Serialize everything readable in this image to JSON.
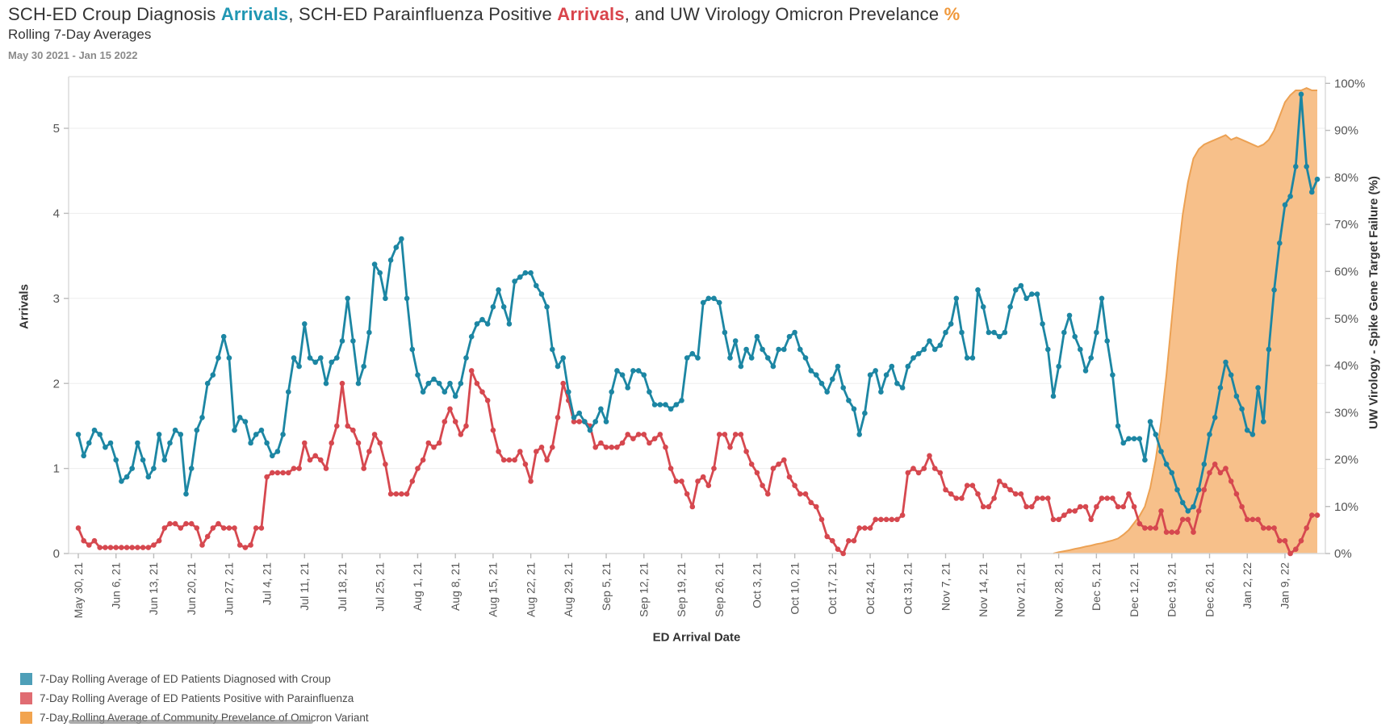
{
  "header": {
    "title_part1": "SCH-ED Croup Diagnosis ",
    "title_part2": "Arrivals",
    "title_part3": ", SCH-ED Parainfluenza Positive ",
    "title_part4": "Arrivals",
    "title_part5": ", and UW Virology Omicron Prevelance ",
    "title_part6": "%",
    "subtitle": "Rolling 7-Day Averages",
    "date_range": "May 30 2021 - Jan 15 2022"
  },
  "colors": {
    "croup_accent": "#2097B3",
    "para_accent": "#D9444B",
    "omicron_accent": "#F0993C",
    "croup_line": "#1C86A3",
    "para_line": "#D6484F",
    "omicron_stroke": "#ECA153",
    "omicron_fill": "#F7C08A",
    "gridline": "#EDEDED",
    "axis_line": "#D8D8D8",
    "tick_mark": "#BBBBBB",
    "tick_label": "#555555",
    "legend_croup": "#4E9FB8",
    "legend_para": "#E06C72",
    "legend_omicron": "#F2A44F"
  },
  "axes": {
    "left_title": "Arrivals",
    "left_ticks": [
      "0",
      "1",
      "2",
      "3",
      "4",
      "5"
    ],
    "right_title": "UW Virology - Spike Gene Target Failure (%)",
    "right_ticks": [
      "0%",
      "10%",
      "20%",
      "30%",
      "40%",
      "50%",
      "60%",
      "70%",
      "80%",
      "90%",
      "100%"
    ],
    "x_title": "ED Arrival Date",
    "x_tick_labels": [
      "May 30, 21",
      "Jun 6, 21",
      "Jun 13, 21",
      "Jun 20, 21",
      "Jun 27, 21",
      "Jul 4, 21",
      "Jul 11, 21",
      "Jul 18, 21",
      "Jul 25, 21",
      "Aug 1, 21",
      "Aug 8, 21",
      "Aug 15, 21",
      "Aug 22, 21",
      "Aug 29, 21",
      "Sep 5, 21",
      "Sep 12, 21",
      "Sep 19, 21",
      "Sep 26, 21",
      "Oct 3, 21",
      "Oct 10, 21",
      "Oct 17, 21",
      "Oct 24, 21",
      "Oct 31, 21",
      "Nov 7, 21",
      "Nov 14, 21",
      "Nov 21, 21",
      "Nov 28, 21",
      "Dec 5, 21",
      "Dec 12, 21",
      "Dec 19, 21",
      "Dec 26, 21",
      "Jan 2, 22",
      "Jan 9, 22"
    ]
  },
  "legend": {
    "items": [
      {
        "label": "7-Day Rolling Average of ED Patients Diagnosed with Croup",
        "color_key": "legend_croup"
      },
      {
        "label": "7-Day Rolling Average of ED Patients Positive with Parainfluenza",
        "color_key": "legend_para"
      },
      {
        "label": "7-Day Rolling Average of Community Prevelance of Omicron Variant",
        "color_key": "legend_omicron"
      }
    ]
  },
  "chart_data": {
    "type": "line",
    "title": "SCH-ED Croup Diagnosis Arrivals, SCH-ED Parainfluenza Positive Arrivals, and UW Virology Omicron Prevelance %",
    "subtitle": "Rolling 7-Day Averages",
    "x_start_date": "May 30 2021",
    "x_end_date": "Jan 15 2022",
    "frequency": "daily",
    "xlabel": "ED Arrival Date",
    "ylabel_left": "Arrivals",
    "ylabel_right": "UW Virology - Spike Gene Target Failure (%)",
    "ylim_left": [
      0,
      5.6
    ],
    "ylim_right": [
      0,
      101.5
    ],
    "grid": true,
    "legend_position": "bottom-left",
    "series": [
      {
        "name": "7-Day Rolling Average of ED Patients Diagnosed with Croup",
        "axis": "left",
        "style": "line-with-markers",
        "values": [
          1.4,
          1.15,
          1.3,
          1.45,
          1.4,
          1.25,
          1.3,
          1.1,
          0.85,
          0.9,
          1.0,
          1.3,
          1.1,
          0.9,
          1.0,
          1.4,
          1.1,
          1.3,
          1.45,
          1.4,
          0.7,
          1.0,
          1.45,
          1.6,
          2.0,
          2.1,
          2.3,
          2.55,
          2.3,
          1.45,
          1.6,
          1.55,
          1.3,
          1.4,
          1.45,
          1.3,
          1.15,
          1.2,
          1.4,
          1.9,
          2.3,
          2.2,
          2.7,
          2.3,
          2.25,
          2.3,
          2.0,
          2.25,
          2.3,
          2.5,
          3.0,
          2.5,
          2.0,
          2.2,
          2.6,
          3.4,
          3.3,
          3.0,
          3.45,
          3.6,
          3.7,
          3.0,
          2.4,
          2.1,
          1.9,
          2.0,
          2.05,
          2.0,
          1.9,
          2.0,
          1.85,
          2.0,
          2.3,
          2.55,
          2.7,
          2.75,
          2.7,
          2.9,
          3.1,
          2.9,
          2.7,
          3.2,
          3.25,
          3.3,
          3.3,
          3.15,
          3.05,
          2.9,
          2.4,
          2.2,
          2.3,
          1.9,
          1.6,
          1.65,
          1.55,
          1.45,
          1.55,
          1.7,
          1.55,
          1.9,
          2.15,
          2.1,
          1.95,
          2.15,
          2.15,
          2.1,
          1.9,
          1.75,
          1.75,
          1.75,
          1.7,
          1.75,
          1.8,
          2.3,
          2.35,
          2.3,
          2.95,
          3.0,
          3.0,
          2.95,
          2.6,
          2.3,
          2.5,
          2.2,
          2.4,
          2.3,
          2.55,
          2.4,
          2.3,
          2.2,
          2.4,
          2.4,
          2.55,
          2.6,
          2.4,
          2.3,
          2.15,
          2.1,
          2.0,
          1.9,
          2.05,
          2.2,
          1.95,
          1.8,
          1.7,
          1.4,
          1.65,
          2.1,
          2.15,
          1.9,
          2.1,
          2.2,
          2.0,
          1.95,
          2.2,
          2.3,
          2.35,
          2.4,
          2.5,
          2.4,
          2.45,
          2.6,
          2.7,
          3.0,
          2.6,
          2.3,
          2.3,
          3.1,
          2.9,
          2.6,
          2.6,
          2.55,
          2.6,
          2.9,
          3.1,
          3.15,
          3.0,
          3.05,
          3.05,
          2.7,
          2.4,
          1.85,
          2.2,
          2.6,
          2.8,
          2.55,
          2.4,
          2.15,
          2.3,
          2.6,
          3.0,
          2.5,
          2.1,
          1.5,
          1.3,
          1.35,
          1.35,
          1.35,
          1.1,
          1.55,
          1.4,
          1.2,
          1.05,
          0.95,
          0.75,
          0.6,
          0.5,
          0.55,
          0.75,
          1.05,
          1.4,
          1.6,
          1.95,
          2.25,
          2.1,
          1.85,
          1.7,
          1.45,
          1.4,
          1.95,
          1.55,
          2.4,
          3.1,
          3.65,
          4.1,
          4.2,
          4.55,
          5.4,
          4.55,
          4.25,
          4.4
        ]
      },
      {
        "name": "7-Day Rolling Average of ED Patients Positive with Parainfluenza",
        "axis": "left",
        "style": "line-with-markers",
        "values": [
          0.3,
          0.15,
          0.1,
          0.15,
          0.07,
          0.07,
          0.07,
          0.07,
          0.07,
          0.07,
          0.07,
          0.07,
          0.07,
          0.07,
          0.1,
          0.15,
          0.3,
          0.35,
          0.35,
          0.3,
          0.35,
          0.35,
          0.3,
          0.1,
          0.2,
          0.3,
          0.35,
          0.3,
          0.3,
          0.3,
          0.1,
          0.07,
          0.1,
          0.3,
          0.3,
          0.9,
          0.95,
          0.95,
          0.95,
          0.95,
          1.0,
          1.0,
          1.3,
          1.1,
          1.15,
          1.1,
          1.0,
          1.3,
          1.5,
          2.0,
          1.5,
          1.45,
          1.3,
          1.0,
          1.2,
          1.4,
          1.3,
          1.05,
          0.7,
          0.7,
          0.7,
          0.7,
          0.85,
          1.0,
          1.1,
          1.3,
          1.25,
          1.3,
          1.55,
          1.7,
          1.55,
          1.4,
          1.5,
          2.15,
          2.0,
          1.9,
          1.8,
          1.45,
          1.2,
          1.1,
          1.1,
          1.1,
          1.2,
          1.05,
          0.85,
          1.2,
          1.25,
          1.1,
          1.25,
          1.6,
          2.0,
          1.8,
          1.55,
          1.55,
          1.55,
          1.5,
          1.25,
          1.3,
          1.25,
          1.25,
          1.25,
          1.3,
          1.4,
          1.35,
          1.4,
          1.4,
          1.3,
          1.35,
          1.4,
          1.25,
          1.0,
          0.85,
          0.85,
          0.7,
          0.55,
          0.85,
          0.9,
          0.8,
          1.0,
          1.4,
          1.4,
          1.25,
          1.4,
          1.4,
          1.2,
          1.05,
          0.95,
          0.8,
          0.7,
          1.0,
          1.05,
          1.1,
          0.9,
          0.8,
          0.7,
          0.7,
          0.6,
          0.55,
          0.4,
          0.2,
          0.15,
          0.05,
          0.0,
          0.15,
          0.15,
          0.3,
          0.3,
          0.3,
          0.4,
          0.4,
          0.4,
          0.4,
          0.4,
          0.45,
          0.95,
          1.0,
          0.95,
          1.0,
          1.15,
          1.0,
          0.95,
          0.75,
          0.7,
          0.65,
          0.65,
          0.8,
          0.8,
          0.7,
          0.55,
          0.55,
          0.65,
          0.85,
          0.8,
          0.75,
          0.7,
          0.7,
          0.55,
          0.55,
          0.65,
          0.65,
          0.65,
          0.4,
          0.4,
          0.45,
          0.5,
          0.5,
          0.55,
          0.55,
          0.4,
          0.55,
          0.65,
          0.65,
          0.65,
          0.55,
          0.55,
          0.7,
          0.55,
          0.35,
          0.3,
          0.3,
          0.3,
          0.5,
          0.25,
          0.25,
          0.25,
          0.4,
          0.4,
          0.25,
          0.5,
          0.75,
          0.95,
          1.05,
          0.95,
          1.0,
          0.85,
          0.7,
          0.55,
          0.4,
          0.4,
          0.4,
          0.3,
          0.3,
          0.3,
          0.15,
          0.15,
          0.0,
          0.05,
          0.15,
          0.3,
          0.45,
          0.45
        ]
      },
      {
        "name": "7-Day Rolling Average of Community Prevelance of Omicron Variant",
        "axis": "right",
        "style": "area",
        "values": [
          0,
          0,
          0,
          0,
          0,
          0,
          0,
          0,
          0,
          0,
          0,
          0,
          0,
          0,
          0,
          0,
          0,
          0,
          0,
          0,
          0,
          0,
          0,
          0,
          0,
          0,
          0,
          0,
          0,
          0,
          0,
          0,
          0,
          0,
          0,
          0,
          0,
          0,
          0,
          0,
          0,
          0,
          0,
          0,
          0,
          0,
          0,
          0,
          0,
          0,
          0,
          0,
          0,
          0,
          0,
          0,
          0,
          0,
          0,
          0,
          0,
          0,
          0,
          0,
          0,
          0,
          0,
          0,
          0,
          0,
          0,
          0,
          0,
          0,
          0,
          0,
          0,
          0,
          0,
          0,
          0,
          0,
          0,
          0,
          0,
          0,
          0,
          0,
          0,
          0,
          0,
          0,
          0,
          0,
          0,
          0,
          0,
          0,
          0,
          0,
          0,
          0,
          0,
          0,
          0,
          0,
          0,
          0,
          0,
          0,
          0,
          0,
          0,
          0,
          0,
          0,
          0,
          0,
          0,
          0,
          0,
          0,
          0,
          0,
          0,
          0,
          0,
          0,
          0,
          0,
          0,
          0,
          0,
          0,
          0,
          0,
          0,
          0,
          0,
          0,
          0,
          0,
          0,
          0,
          0,
          0,
          0,
          0,
          0,
          0,
          0,
          0,
          0,
          0,
          0,
          0,
          0,
          0,
          0,
          0,
          0,
          0,
          0,
          0,
          0,
          0,
          0,
          0,
          0,
          0,
          0,
          0,
          0,
          0,
          0,
          0,
          0,
          0,
          0,
          0,
          0,
          0,
          0.3,
          0.5,
          0.7,
          1.0,
          1.2,
          1.5,
          1.7,
          2.0,
          2.2,
          2.5,
          2.8,
          3.2,
          4.0,
          5.0,
          6.5,
          8.0,
          10.0,
          14.0,
          20.0,
          28.0,
          38.0,
          50.0,
          62.0,
          72.0,
          79.0,
          84.0,
          86.0,
          87.0,
          87.5,
          88.0,
          88.5,
          89.0,
          88.0,
          88.5,
          88.0,
          87.5,
          87.0,
          86.5,
          87.0,
          88.0,
          90.0,
          93.0,
          96.0,
          97.5,
          98.5,
          98.5,
          99.0,
          98.5,
          98.5
        ]
      }
    ]
  }
}
